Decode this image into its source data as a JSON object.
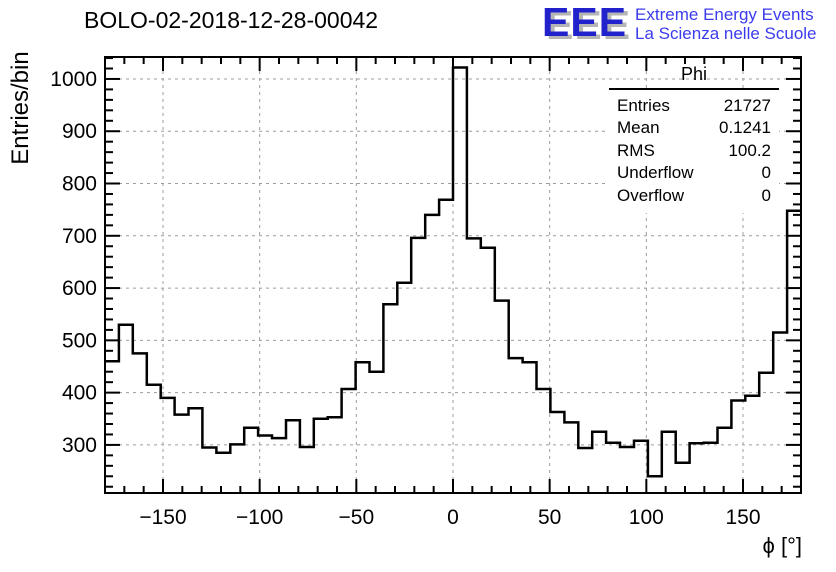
{
  "header": {
    "title": "BOLO-02-2018-12-28-00042"
  },
  "logo": {
    "letters": "EEE",
    "line1": "Extreme Energy Events",
    "line2": "La Scienza nelle Scuole",
    "letters_color": "#2222cc",
    "shadow_color": "#b5b5b5",
    "text_color": "#3b3bee"
  },
  "stats": {
    "title": "Phi",
    "rows": [
      {
        "label": "Entries",
        "value": "21727"
      },
      {
        "label": "Mean",
        "value": "0.1241"
      },
      {
        "label": "RMS",
        "value": "100.2"
      },
      {
        "label": "Underflow",
        "value": "0"
      },
      {
        "label": "Overflow",
        "value": "0"
      }
    ]
  },
  "chart_data": {
    "type": "bar",
    "subtype": "step-histogram",
    "title": "BOLO-02-2018-12-28-00042",
    "xlabel": "ϕ [°]",
    "ylabel": "Entries/bin",
    "xlim": [
      -180,
      180
    ],
    "ylim": [
      208,
      1042
    ],
    "bin_start": -180,
    "bin_width": 7.2,
    "n_bins": 50,
    "values": [
      460,
      530,
      475,
      415,
      390,
      358,
      370,
      295,
      285,
      301,
      333,
      318,
      313,
      347,
      296,
      350,
      353,
      407,
      458,
      440,
      569,
      610,
      696,
      740,
      769,
      1022,
      695,
      677,
      576,
      466,
      458,
      407,
      363,
      343,
      294,
      325,
      304,
      296,
      308,
      240,
      325,
      266,
      303,
      304,
      333,
      385,
      394,
      438,
      515,
      748
    ],
    "x_major_ticks": [
      -150,
      -100,
      -50,
      0,
      50,
      100,
      150
    ],
    "x_minor_step": 10,
    "y_major_ticks": [
      300,
      400,
      500,
      600,
      700,
      800,
      900,
      1000
    ],
    "y_minor_step": 20,
    "grid": true,
    "legend_position": "none",
    "line_color": "#000000",
    "grid_color": "#9c9c9c",
    "frame_color": "#000000"
  }
}
